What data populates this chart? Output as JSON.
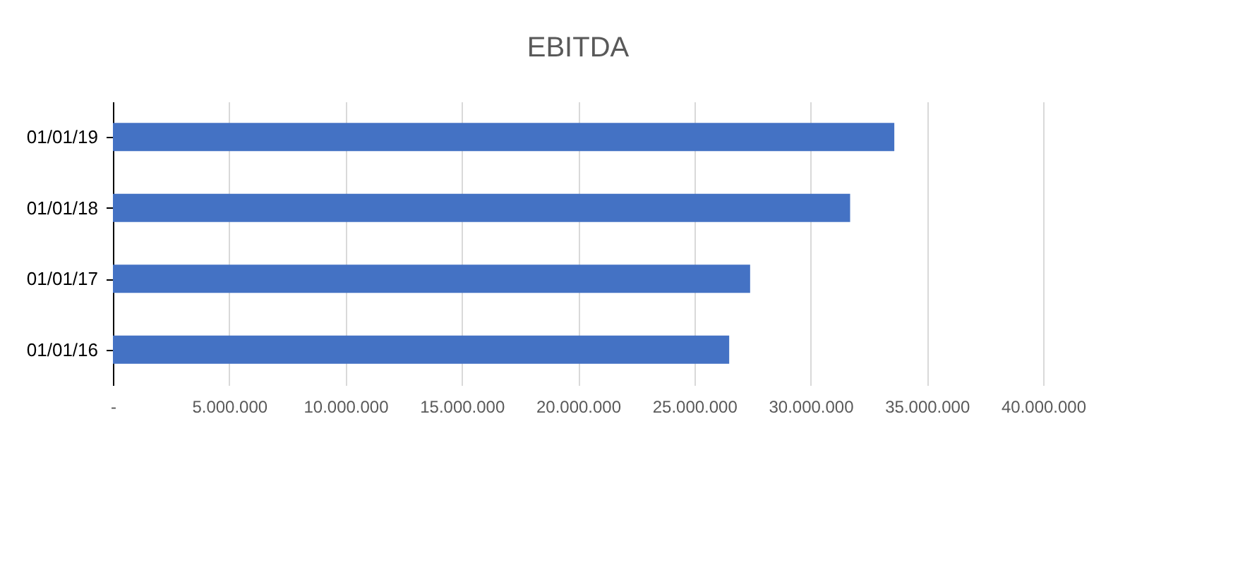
{
  "chart_data": {
    "type": "bar",
    "title": "EBITDA",
    "orientation": "horizontal",
    "categories": [
      "01/01/19",
      "01/01/18",
      "01/01/17",
      "01/01/16"
    ],
    "values": [
      33600000,
      31700000,
      27400000,
      26500000
    ],
    "color": "#4472c4",
    "xlim": [
      0,
      40000000
    ],
    "xticks": [
      {
        "value": 0,
        "label": "-"
      },
      {
        "value": 5000000,
        "label": "5.000.000"
      },
      {
        "value": 10000000,
        "label": "10.000.000"
      },
      {
        "value": 15000000,
        "label": "15.000.000"
      },
      {
        "value": 20000000,
        "label": "20.000.000"
      },
      {
        "value": 25000000,
        "label": "25.000.000"
      },
      {
        "value": 30000000,
        "label": "30.000.000"
      },
      {
        "value": 35000000,
        "label": "35.000.000"
      },
      {
        "value": 40000000,
        "label": "40.000.000"
      }
    ],
    "grid": "x"
  }
}
